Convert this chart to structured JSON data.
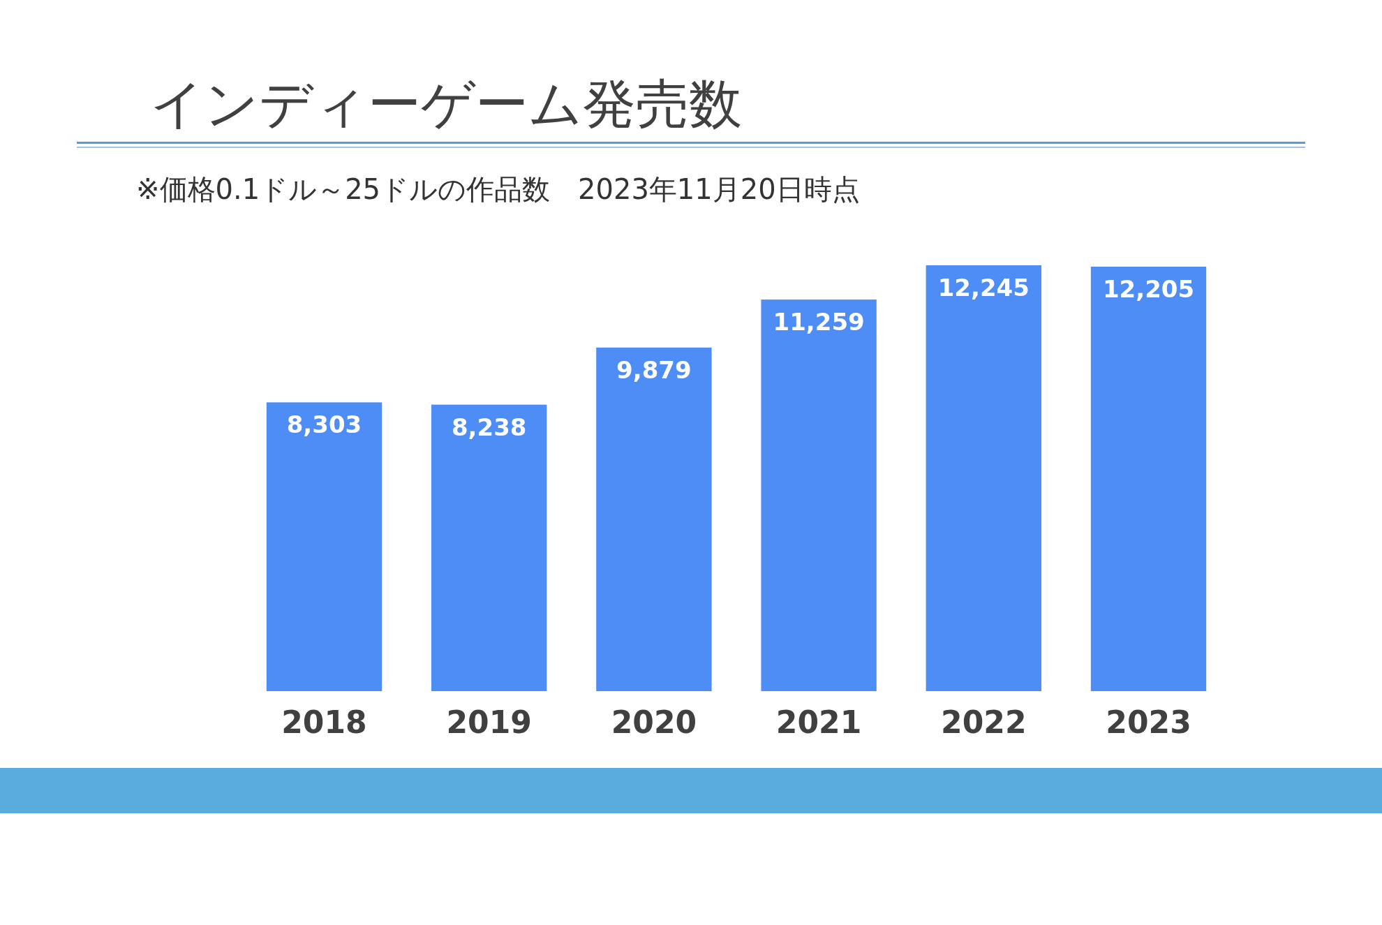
{
  "chart_data": {
    "type": "bar",
    "title": "インディーゲーム発売数",
    "subtitle": "※価格0.1ドル～25ドルの作品数　2023年11月20日時点",
    "categories": [
      "2018",
      "2019",
      "2020",
      "2021",
      "2022",
      "2023"
    ],
    "values": [
      8303,
      8238,
      9879,
      11259,
      12245,
      12205
    ],
    "value_labels": [
      "8,303",
      "8,238",
      "9,879",
      "11,259",
      "12,245",
      "12,205"
    ],
    "color": "#4d8df5"
  }
}
